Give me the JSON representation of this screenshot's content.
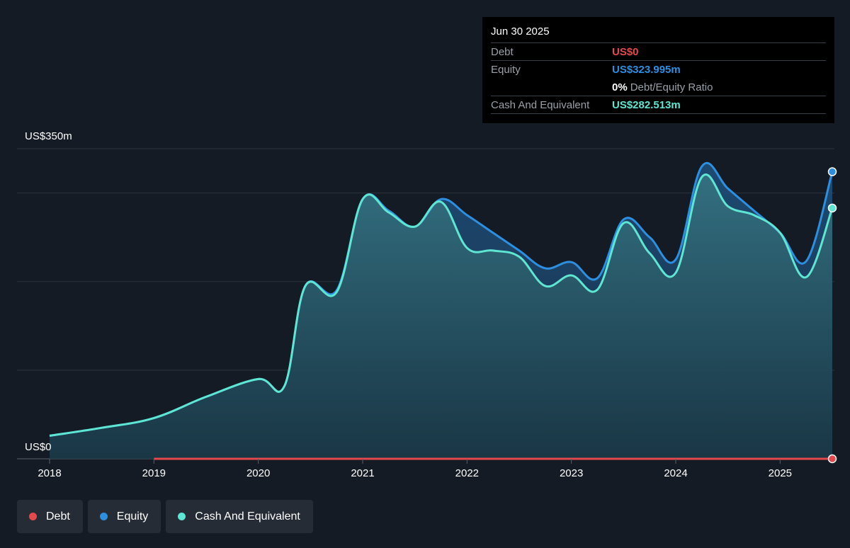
{
  "chart_data": {
    "type": "area",
    "y_axis_label_top": "US$350m",
    "y_axis_label_bottom": "US$0",
    "ylim": [
      0,
      350
    ],
    "xlim": [
      2018,
      2025.5
    ],
    "x_ticks": [
      {
        "value": 2018,
        "label": "2018"
      },
      {
        "value": 2019,
        "label": "2019"
      },
      {
        "value": 2020,
        "label": "2020"
      },
      {
        "value": 2021,
        "label": "2021"
      },
      {
        "value": 2022,
        "label": "2022"
      },
      {
        "value": 2023,
        "label": "2023"
      },
      {
        "value": 2024,
        "label": "2024"
      },
      {
        "value": 2025,
        "label": "2025"
      }
    ],
    "gridlines": [
      0,
      100,
      200,
      300,
      350
    ],
    "series": [
      {
        "name": "Debt",
        "color": "#e5484d",
        "x": [
          2019,
          2025.5
        ],
        "y": [
          0,
          0
        ]
      },
      {
        "name": "Equity",
        "color": "#2d8fe0",
        "x": [
          2018,
          2018.5,
          2019,
          2019.5,
          2020,
          2020.25,
          2020.45,
          2020.75,
          2021,
          2021.25,
          2021.5,
          2021.75,
          2022,
          2022.25,
          2022.5,
          2022.75,
          2023,
          2023.25,
          2023.5,
          2023.75,
          2024,
          2024.25,
          2024.5,
          2024.75,
          2025,
          2025.25,
          2025.5
        ],
        "y": [
          26,
          35,
          46,
          70,
          90,
          82,
          195,
          190,
          293,
          280,
          262,
          293,
          275,
          255,
          235,
          215,
          222,
          204,
          270,
          250,
          225,
          330,
          305,
          280,
          255,
          223,
          324
        ]
      },
      {
        "name": "Cash And Equivalent",
        "color": "#5ee6d2",
        "x": [
          2018,
          2018.5,
          2019,
          2019.5,
          2020,
          2020.25,
          2020.45,
          2020.75,
          2021,
          2021.25,
          2021.5,
          2021.75,
          2022,
          2022.25,
          2022.5,
          2022.75,
          2023,
          2023.25,
          2023.5,
          2023.75,
          2024,
          2024.25,
          2024.5,
          2024.75,
          2025,
          2025.25,
          2025.5
        ],
        "y": [
          26,
          35,
          46,
          70,
          90,
          82,
          195,
          188,
          293,
          278,
          262,
          290,
          238,
          235,
          228,
          195,
          207,
          191,
          266,
          232,
          210,
          318,
          285,
          275,
          255,
          205,
          283
        ]
      }
    ],
    "tooltip": {
      "date": "Jun 30 2025",
      "rows": [
        {
          "label": "Debt",
          "value": "US$0",
          "color": "#e5484d"
        },
        {
          "label": "Equity",
          "value": "US$323.995m",
          "color": "#2d8fe0"
        },
        {
          "label": "",
          "value": "0%",
          "suffix": "Debt/Equity Ratio",
          "color": "#ffffff"
        },
        {
          "label": "Cash And Equivalent",
          "value": "US$282.513m",
          "color": "#5ee6d2"
        }
      ]
    },
    "legend": [
      {
        "label": "Debt",
        "color": "#e5484d"
      },
      {
        "label": "Equity",
        "color": "#2d8fe0"
      },
      {
        "label": "Cash And Equivalent",
        "color": "#5ee6d2"
      }
    ]
  }
}
